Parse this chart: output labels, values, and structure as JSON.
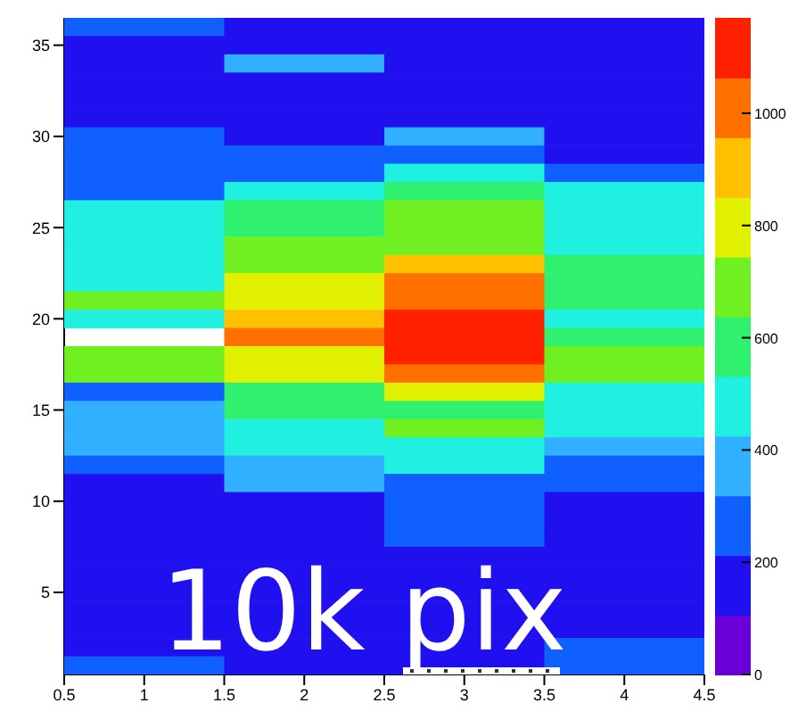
{
  "chart_data": {
    "type": "heatmap",
    "x": [
      1,
      2,
      3,
      4
    ],
    "y": [
      36,
      35,
      34,
      33,
      32,
      31,
      30,
      29,
      28,
      27,
      26,
      25,
      24,
      23,
      22,
      21,
      20,
      19,
      18,
      17,
      16,
      15,
      14,
      13,
      12,
      11,
      10,
      9,
      8,
      7,
      6,
      5,
      4,
      3,
      2,
      1
    ],
    "cells": [
      [
        250,
        200,
        200,
        200
      ],
      [
        200,
        200,
        200,
        200
      ],
      [
        200,
        330,
        200,
        200
      ],
      [
        200,
        200,
        150,
        200
      ],
      [
        150,
        200,
        150,
        200
      ],
      [
        150,
        200,
        200,
        200
      ],
      [
        220,
        200,
        400,
        200
      ],
      [
        300,
        280,
        250,
        200
      ],
      [
        300,
        250,
        470,
        280
      ],
      [
        300,
        480,
        620,
        460
      ],
      [
        450,
        550,
        650,
        480
      ],
      [
        470,
        620,
        650,
        480
      ],
      [
        480,
        650,
        700,
        480
      ],
      [
        480,
        740,
        860,
        560
      ],
      [
        480,
        820,
        960,
        620
      ],
      [
        650,
        850,
        1060,
        620
      ],
      [
        500,
        870,
        1080,
        500
      ],
      [
        null,
        980,
        1100,
        550
      ],
      [
        650,
        830,
        1100,
        650
      ],
      [
        650,
        750,
        990,
        720
      ],
      [
        250,
        600,
        820,
        520
      ],
      [
        400,
        620,
        580,
        480
      ],
      [
        350,
        500,
        650,
        480
      ],
      [
        350,
        480,
        500,
        420
      ],
      [
        300,
        400,
        470,
        280
      ],
      [
        200,
        380,
        300,
        250
      ],
      [
        200,
        200,
        280,
        120
      ],
      [
        200,
        200,
        280,
        120
      ],
      [
        200,
        200,
        250,
        180
      ],
      [
        200,
        200,
        200,
        180
      ],
      [
        200,
        200,
        200,
        180
      ],
      [
        200,
        200,
        200,
        180
      ],
      [
        200,
        200,
        200,
        180
      ],
      [
        200,
        200,
        200,
        200
      ],
      [
        200,
        200,
        200,
        300
      ],
      [
        220,
        200,
        200,
        250
      ]
    ],
    "xlim": [
      0.5,
      4.5
    ],
    "xticks": [
      0.5,
      1,
      1.5,
      2,
      2.5,
      3,
      3.5,
      4,
      4.5
    ],
    "ylim": [
      0.5,
      36.5
    ],
    "yticks": [
      5,
      10,
      15,
      20,
      25,
      30,
      35
    ],
    "clim": [
      0,
      1170
    ],
    "cticks": [
      0,
      200,
      400,
      600,
      800,
      1000
    ],
    "annotations": [
      "10k pix"
    ]
  }
}
